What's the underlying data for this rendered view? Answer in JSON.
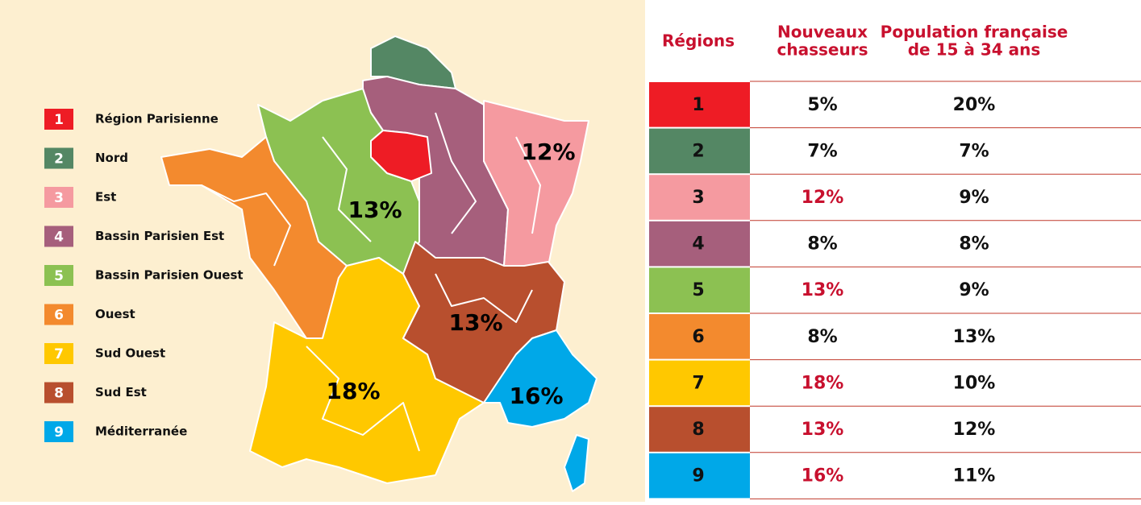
{
  "legend": [
    {
      "number": "1",
      "label": "Région Parisienne",
      "color": "#ee1c25"
    },
    {
      "number": "2",
      "label": "Nord",
      "color": "#548764"
    },
    {
      "number": "3",
      "label": "Est",
      "color": "#f59aa0"
    },
    {
      "number": "4",
      "label": "Bassin Parisien Est",
      "color": "#a65f7c"
    },
    {
      "number": "5",
      "label": "Bassin Parisien Ouest",
      "color": "#8cc152"
    },
    {
      "number": "6",
      "label": "Ouest",
      "color": "#f38a2e"
    },
    {
      "number": "7",
      "label": "Sud Ouest",
      "color": "#ffc800"
    },
    {
      "number": "8",
      "label": "Sud Est",
      "color": "#b84f2e"
    },
    {
      "number": "9",
      "label": "Méditerranée",
      "color": "#00a8e8"
    }
  ],
  "map_labels": [
    "12%",
    "13%",
    "13%",
    "18%",
    "16%"
  ],
  "table": {
    "headers": [
      [
        "Régions"
      ],
      [
        "Nouveaux",
        "chasseurs"
      ],
      [
        "Population française",
        "de 15 à 34 ans"
      ]
    ],
    "rows": [
      {
        "cells": [
          "1",
          "5%",
          "20%"
        ],
        "highlight": false
      },
      {
        "cells": [
          "2",
          "7%",
          "7%"
        ],
        "highlight": false
      },
      {
        "cells": [
          "3",
          "12%",
          "9%"
        ],
        "highlight": true
      },
      {
        "cells": [
          "4",
          "8%",
          "8%"
        ],
        "highlight": false
      },
      {
        "cells": [
          "5",
          "13%",
          "9%"
        ],
        "highlight": true
      },
      {
        "cells": [
          "6",
          "8%",
          "13%"
        ],
        "highlight": false
      },
      {
        "cells": [
          "7",
          "18%",
          "10%"
        ],
        "highlight": true
      },
      {
        "cells": [
          "8",
          "13%",
          "12%"
        ],
        "highlight": true
      },
      {
        "cells": [
          "9",
          "16%",
          "11%"
        ],
        "highlight": true
      }
    ]
  }
}
